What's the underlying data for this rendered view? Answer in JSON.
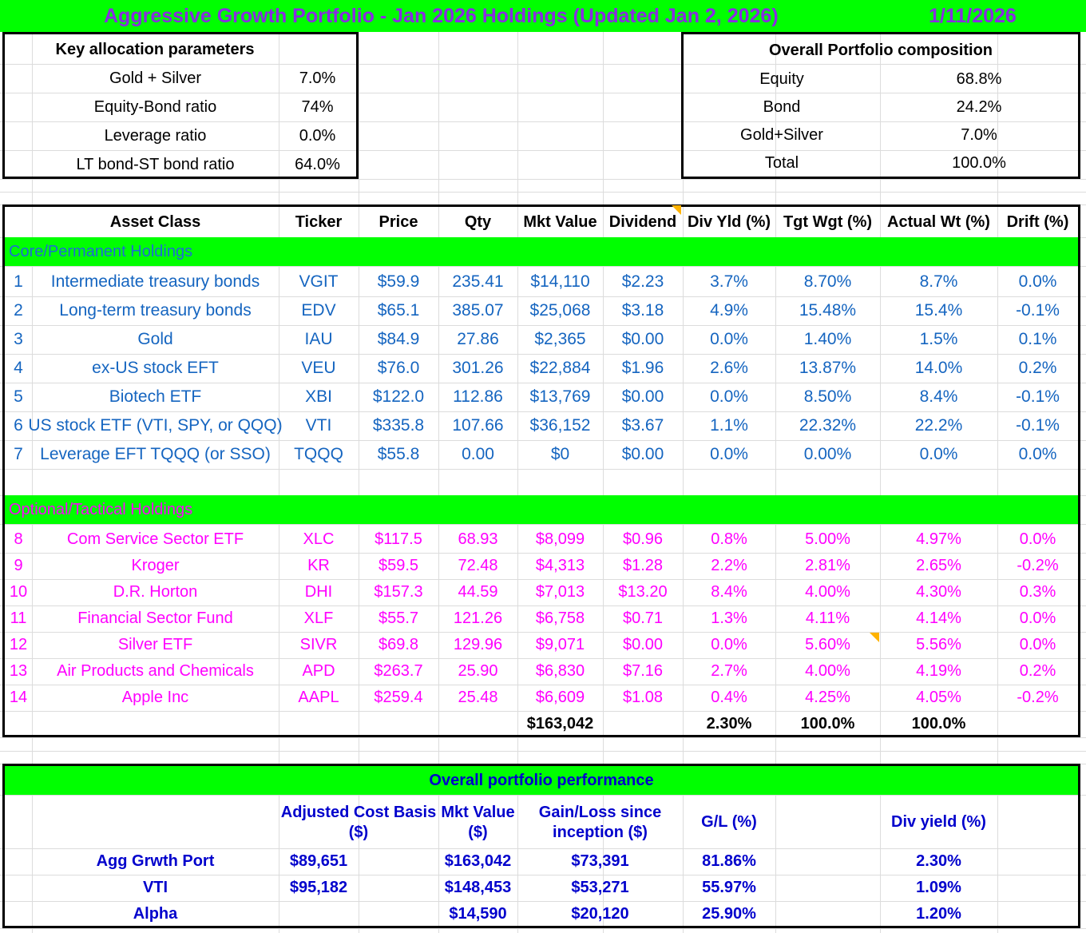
{
  "title": {
    "text": "Aggressive Growth Portfolio - Jan 2026 Holdings (Updated Jan 2, 2026)",
    "date": "1/11/2026"
  },
  "key_params": {
    "header": "Key allocation parameters",
    "rows": [
      {
        "label": "Gold + Silver",
        "value": "7.0%"
      },
      {
        "label": "Equity-Bond ratio",
        "value": "74%"
      },
      {
        "label": "Leverage ratio",
        "value": "0.0%"
      },
      {
        "label": "LT bond-ST bond ratio",
        "value": "64.0%"
      }
    ]
  },
  "composition": {
    "header": "Overall Portfolio composition",
    "rows": [
      {
        "label": "Equity",
        "value": "68.8%"
      },
      {
        "label": "Bond",
        "value": "24.2%"
      },
      {
        "label": "Gold+Silver",
        "value": "7.0%"
      },
      {
        "label": "Total",
        "value": "100.0%"
      }
    ]
  },
  "holdings": {
    "columns": [
      "Asset Class",
      "Ticker",
      "Price",
      "Qty",
      "Mkt Value",
      "Dividend",
      "Div Yld (%)",
      "Tgt Wgt (%)",
      "Actual Wt (%)",
      "Drift (%)"
    ],
    "core_label": "Core/Permanent Holdings",
    "core": [
      {
        "n": "1",
        "asset": "Intermediate treasury bonds",
        "ticker": "VGIT",
        "price": "$59.9",
        "qty": "235.41",
        "mv": "$14,110",
        "div": "$2.23",
        "yld": "3.7%",
        "tgt": "8.70%",
        "act": "8.7%",
        "drift": "0.0%"
      },
      {
        "n": "2",
        "asset": "Long-term treasury bonds",
        "ticker": "EDV",
        "price": "$65.1",
        "qty": "385.07",
        "mv": "$25,068",
        "div": "$3.18",
        "yld": "4.9%",
        "tgt": "15.48%",
        "act": "15.4%",
        "drift": "-0.1%"
      },
      {
        "n": "3",
        "asset": "Gold",
        "ticker": "IAU",
        "price": "$84.9",
        "qty": "27.86",
        "mv": "$2,365",
        "div": "$0.00",
        "yld": "0.0%",
        "tgt": "1.40%",
        "act": "1.5%",
        "drift": "0.1%"
      },
      {
        "n": "4",
        "asset": "ex-US stock EFT",
        "ticker": "VEU",
        "price": "$76.0",
        "qty": "301.26",
        "mv": "$22,884",
        "div": "$1.96",
        "yld": "2.6%",
        "tgt": "13.87%",
        "act": "14.0%",
        "drift": "0.2%"
      },
      {
        "n": "5",
        "asset": "Biotech ETF",
        "ticker": "XBI",
        "price": "$122.0",
        "qty": "112.86",
        "mv": "$13,769",
        "div": "$0.00",
        "yld": "0.0%",
        "tgt": "8.50%",
        "act": "8.4%",
        "drift": "-0.1%"
      },
      {
        "n": "6",
        "asset": "US stock ETF (VTI, SPY, or QQQ)",
        "ticker": "VTI",
        "price": "$335.8",
        "qty": "107.66",
        "mv": "$36,152",
        "div": "$3.67",
        "yld": "1.1%",
        "tgt": "22.32%",
        "act": "22.2%",
        "drift": "-0.1%"
      },
      {
        "n": "7",
        "asset": "Leverage EFT TQQQ (or SSO)",
        "ticker": "TQQQ",
        "price": "$55.8",
        "qty": "0.00",
        "mv": "$0",
        "div": "$0.00",
        "yld": "0.0%",
        "tgt": "0.00%",
        "act": "0.0%",
        "drift": "0.0%"
      }
    ],
    "tactical_label": "Optional/Tactical Holdings",
    "tactical": [
      {
        "n": "8",
        "asset": "Com Service Sector ETF",
        "ticker": "XLC",
        "price": "$117.5",
        "qty": "68.93",
        "mv": "$8,099",
        "div": "$0.96",
        "yld": "0.8%",
        "tgt": "5.00%",
        "act": "4.97%",
        "drift": "0.0%"
      },
      {
        "n": "9",
        "asset": "Kroger",
        "ticker": "KR",
        "price": "$59.5",
        "qty": "72.48",
        "mv": "$4,313",
        "div": "$1.28",
        "yld": "2.2%",
        "tgt": "2.81%",
        "act": "2.65%",
        "drift": "-0.2%"
      },
      {
        "n": "10",
        "asset": "D.R. Horton",
        "ticker": "DHI",
        "price": "$157.3",
        "qty": "44.59",
        "mv": "$7,013",
        "div": "$13.20",
        "yld": "8.4%",
        "tgt": "4.00%",
        "act": "4.30%",
        "drift": "0.3%"
      },
      {
        "n": "11",
        "asset": "Financial Sector Fund",
        "ticker": "XLF",
        "price": "$55.7",
        "qty": "121.26",
        "mv": "$6,758",
        "div": "$0.71",
        "yld": "1.3%",
        "tgt": "4.11%",
        "act": "4.14%",
        "drift": "0.0%"
      },
      {
        "n": "12",
        "asset": "Silver ETF",
        "ticker": "SIVR",
        "price": "$69.8",
        "qty": "129.96",
        "mv": "$9,071",
        "div": "$0.00",
        "yld": "0.0%",
        "tgt": "5.60%",
        "act": "5.56%",
        "drift": "0.0%"
      },
      {
        "n": "13",
        "asset": "Air Products and Chemicals",
        "ticker": "APD",
        "price": "$263.7",
        "qty": "25.90",
        "mv": "$6,830",
        "div": "$7.16",
        "yld": "2.7%",
        "tgt": "4.00%",
        "act": "4.19%",
        "drift": "0.2%"
      },
      {
        "n": "14",
        "asset": "Apple Inc",
        "ticker": "AAPL",
        "price": "$259.4",
        "qty": "25.48",
        "mv": "$6,609",
        "div": "$1.08",
        "yld": "0.4%",
        "tgt": "4.25%",
        "act": "4.05%",
        "drift": "-0.2%"
      }
    ],
    "totals": {
      "mv": "$163,042",
      "yld": "2.30%",
      "tgt": "100.0%",
      "act": "100.0%"
    }
  },
  "performance": {
    "header": "Overall portfolio performance",
    "columns": {
      "cost": "Adjusted Cost Basis ($)",
      "mv": "Mkt Value ($)",
      "gain": "Gain/Loss since inception ($)",
      "gl": "G/L (%)",
      "dy": "Div yield (%)"
    },
    "rows": [
      {
        "label": "Agg Grwth Port",
        "cost": "$89,651",
        "mv": "$163,042",
        "gain": "$73,391",
        "gl": "81.86%",
        "dy": "2.30%"
      },
      {
        "label": "VTI",
        "cost": "$95,182",
        "mv": "$148,453",
        "gain": "$53,271",
        "gl": "55.97%",
        "dy": "1.09%"
      },
      {
        "label": "Alpha",
        "cost": "",
        "mv": "$14,590",
        "gain": "$20,120",
        "gl": "25.90%",
        "dy": "1.20%"
      }
    ]
  },
  "colors": {
    "band": "#00ff00",
    "core_text": "#1565c0",
    "tactical_text": "#ff00ff",
    "perf_text": "#0000cc",
    "title_text": "#8a2be2"
  }
}
